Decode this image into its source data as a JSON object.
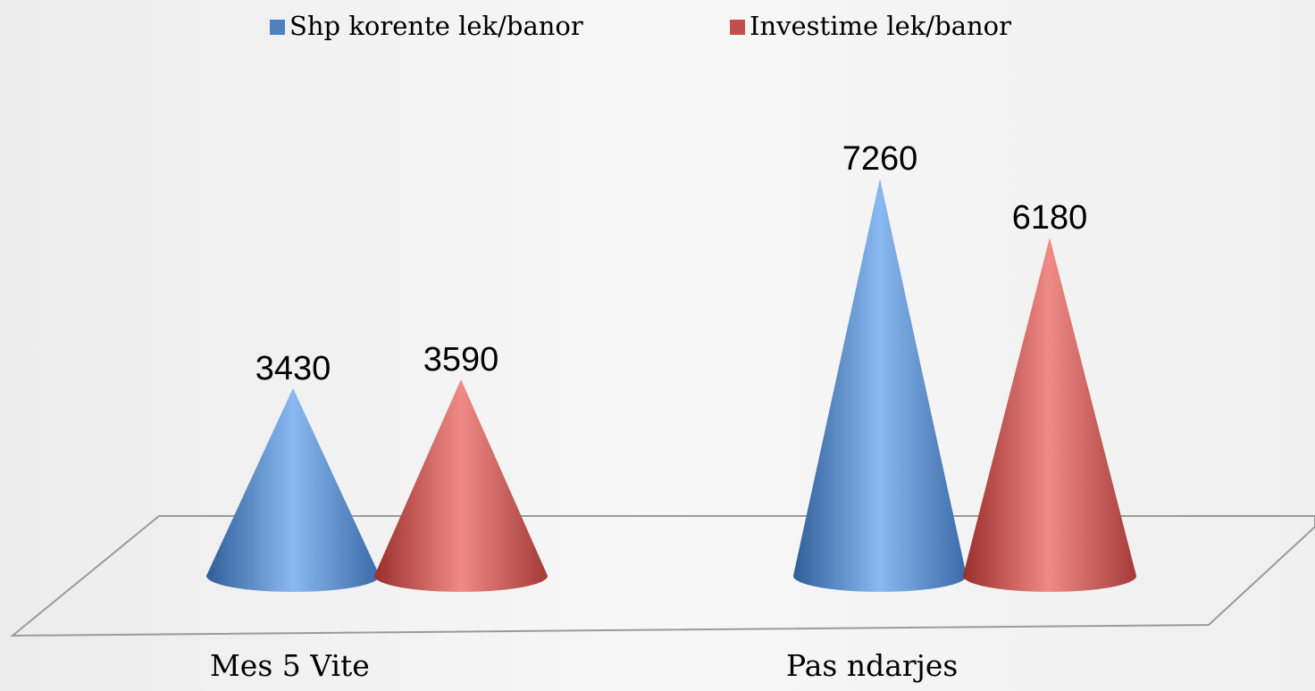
{
  "chart_data": {
    "type": "cone",
    "categories": [
      "Mes 5 Vite",
      "Pas ndarjes"
    ],
    "series": [
      {
        "name": "Shp korente lek/banor",
        "color": "#4f81bd",
        "values": [
          3430,
          7260
        ]
      },
      {
        "name": "Investime lek/banor",
        "color": "#c0504d",
        "values": [
          3590,
          6180
        ]
      }
    ]
  }
}
